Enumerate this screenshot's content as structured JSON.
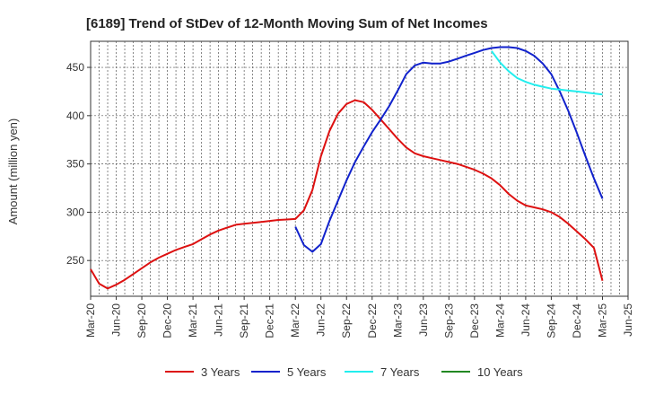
{
  "chart_data": {
    "type": "line",
    "title": "[6189]  Trend of StDev of 12-Month Moving Sum of Net Incomes",
    "xlabel": "",
    "ylabel": "Amount (million yen)",
    "x_ticks": [
      "Mar-20",
      "Jun-20",
      "Sep-20",
      "Dec-20",
      "Mar-21",
      "Jun-21",
      "Sep-21",
      "Dec-21",
      "Mar-22",
      "Jun-22",
      "Sep-22",
      "Dec-22",
      "Mar-23",
      "Jun-23",
      "Sep-23",
      "Dec-23",
      "Mar-24",
      "Jun-24",
      "Sep-24",
      "Dec-24",
      "Mar-25",
      "Jun-25"
    ],
    "y_ticks": [
      250,
      300,
      350,
      400,
      450
    ],
    "ylim": [
      213,
      477
    ],
    "grid": true,
    "legend_position": "bottom",
    "series": [
      {
        "name": "3 Years",
        "color": "#dd1111",
        "x": [
          "2020-03",
          "2020-04",
          "2020-05",
          "2020-06",
          "2020-07",
          "2020-08",
          "2020-09",
          "2020-10",
          "2020-11",
          "2020-12",
          "2021-01",
          "2021-02",
          "2021-03",
          "2021-04",
          "2021-05",
          "2021-06",
          "2021-07",
          "2021-08",
          "2021-09",
          "2021-10",
          "2021-11",
          "2021-12",
          "2022-01",
          "2022-02",
          "2022-03",
          "2022-04",
          "2022-05",
          "2022-06",
          "2022-07",
          "2022-08",
          "2022-09",
          "2022-10",
          "2022-11",
          "2022-12",
          "2023-01",
          "2023-02",
          "2023-03",
          "2023-04",
          "2023-05",
          "2023-06",
          "2023-07",
          "2023-08",
          "2023-09",
          "2023-10",
          "2023-11",
          "2023-12",
          "2024-01",
          "2024-02",
          "2024-03",
          "2024-04",
          "2024-05",
          "2024-06",
          "2024-07",
          "2024-08",
          "2024-09",
          "2024-10",
          "2024-11",
          "2024-12",
          "2025-01",
          "2025-02",
          "2025-03"
        ],
        "values": [
          241,
          226,
          221,
          225,
          230,
          236,
          242,
          248,
          253,
          257,
          261,
          264,
          267,
          272,
          277,
          281,
          284,
          287,
          288,
          289,
          290,
          291,
          292,
          292.5,
          293,
          302,
          323,
          358,
          384,
          402,
          412,
          416,
          414,
          406,
          396,
          386,
          376,
          367,
          361,
          358,
          356,
          354,
          352,
          350,
          347,
          344,
          340,
          335,
          328,
          319,
          312,
          307,
          305,
          303,
          300,
          295,
          288,
          280,
          272,
          263,
          253
        ],
        "values_tail_note": "",
        "end_value": 229
      },
      {
        "name": "5 Years",
        "color": "#1122cc",
        "x": [
          "2022-03",
          "2022-04",
          "2022-05",
          "2022-06",
          "2022-07",
          "2022-08",
          "2022-09",
          "2022-10",
          "2022-11",
          "2022-12",
          "2023-01",
          "2023-02",
          "2023-03",
          "2023-04",
          "2023-05",
          "2023-06",
          "2023-07",
          "2023-08",
          "2023-09",
          "2023-10",
          "2023-11",
          "2023-12",
          "2024-01",
          "2024-02",
          "2024-03",
          "2024-04",
          "2024-05",
          "2024-06",
          "2024-07",
          "2024-08",
          "2024-09",
          "2024-10",
          "2024-11",
          "2024-12",
          "2025-01",
          "2025-02",
          "2025-03"
        ],
        "values": [
          285,
          266,
          259,
          267,
          291,
          312,
          333,
          352,
          368,
          383,
          396,
          410,
          426,
          443,
          452,
          455,
          454,
          454,
          456,
          459,
          462,
          465,
          468,
          470,
          471,
          471,
          470,
          467,
          462,
          454,
          443,
          425,
          405,
          382,
          358,
          335,
          314
        ]
      },
      {
        "name": "7 Years",
        "color": "#22eeee",
        "x": [
          "2024-02",
          "2024-03",
          "2024-04",
          "2024-05",
          "2024-06",
          "2024-07",
          "2024-08",
          "2024-09",
          "2024-10",
          "2024-11",
          "2024-12",
          "2025-01",
          "2025-02",
          "2025-03"
        ],
        "values": [
          467,
          455,
          446,
          439,
          435,
          432,
          430,
          428,
          427,
          426,
          425,
          424,
          423,
          422
        ]
      },
      {
        "name": "10 Years",
        "color": "#228822",
        "x": [],
        "values": []
      }
    ]
  }
}
